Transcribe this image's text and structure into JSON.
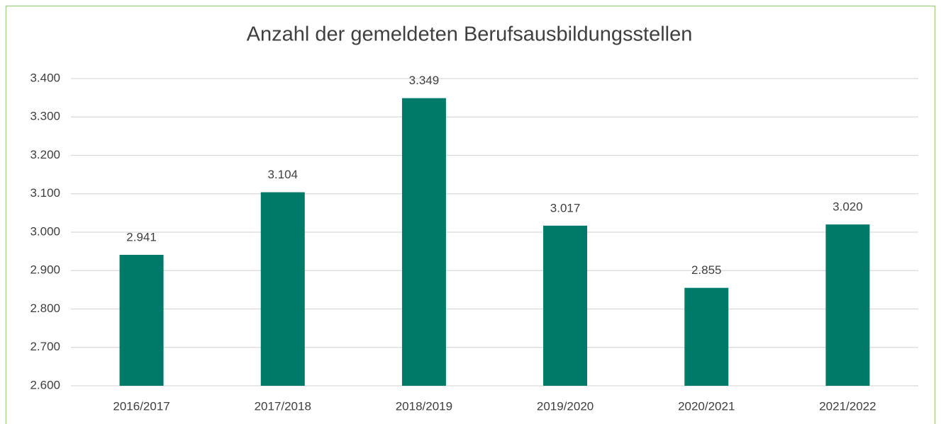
{
  "chart_data": {
    "type": "bar",
    "title": "Anzahl der gemeldeten Berufsausbildungsstellen",
    "categories": [
      "2016/2017",
      "2017/2018",
      "2018/2019",
      "2019/2020",
      "2020/2021",
      "2021/2022"
    ],
    "values": [
      2941,
      3104,
      3349,
      3017,
      2855,
      3020
    ],
    "value_labels": [
      "2.941",
      "3.104",
      "3.349",
      "3.017",
      "2.855",
      "3.020"
    ],
    "color": "#007a68",
    "ylim": [
      2600,
      3400
    ],
    "yticks": [
      {
        "value": 2600,
        "label": "2.600"
      },
      {
        "value": 2700,
        "label": "2.700"
      },
      {
        "value": 2800,
        "label": "2.800"
      },
      {
        "value": 2900,
        "label": "2.900"
      },
      {
        "value": 3000,
        "label": "3.000"
      },
      {
        "value": 3100,
        "label": "3.100"
      },
      {
        "value": 3200,
        "label": "3.200"
      },
      {
        "value": 3300,
        "label": "3.300"
      },
      {
        "value": 3400,
        "label": "3.400"
      }
    ],
    "grid": true
  }
}
